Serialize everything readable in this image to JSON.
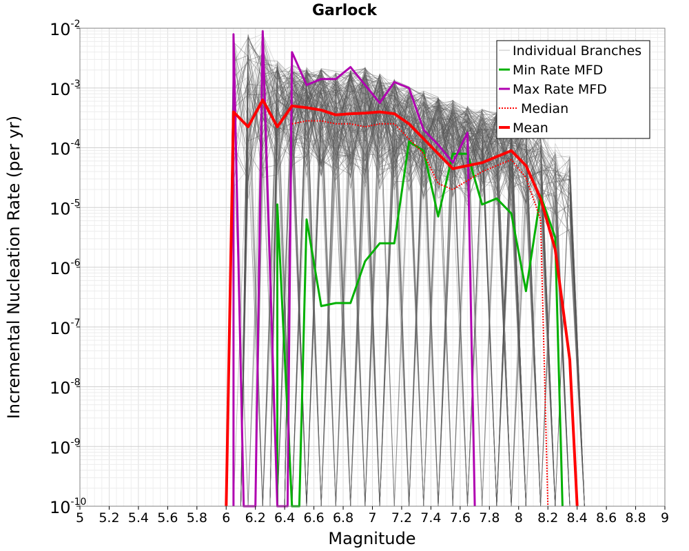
{
  "chart_data": {
    "type": "line",
    "title": "Garlock",
    "xlabel": "Magnitude",
    "ylabel": "Incremental Nucleation Rate (per yr)",
    "xlim": [
      5,
      9
    ],
    "ylim_log10": [
      -10,
      -2
    ],
    "y_scale": "log",
    "grid": true,
    "legend_position": "top-right",
    "x_ticks": [
      "5",
      "5.2",
      "5.4",
      "5.6",
      "5.8",
      "6",
      "6.2",
      "6.4",
      "6.6",
      "6.8",
      "7",
      "7.2",
      "7.4",
      "7.6",
      "7.8",
      "8",
      "8.2",
      "8.4",
      "8.6",
      "8.8",
      "9"
    ],
    "y_ticks": [
      {
        "base": "10",
        "exp": "-10"
      },
      {
        "base": "10",
        "exp": "-9"
      },
      {
        "base": "10",
        "exp": "-8"
      },
      {
        "base": "10",
        "exp": "-7"
      },
      {
        "base": "10",
        "exp": "-6"
      },
      {
        "base": "10",
        "exp": "-5"
      },
      {
        "base": "10",
        "exp": "-4"
      },
      {
        "base": "10",
        "exp": "-3"
      },
      {
        "base": "10",
        "exp": "-2"
      }
    ],
    "branch_envelope": {
      "x": [
        6.05,
        6.15,
        6.25,
        6.35,
        6.45,
        6.55,
        6.65,
        6.75,
        6.85,
        6.95,
        7.05,
        7.15,
        7.25,
        7.35,
        7.45,
        7.55,
        7.65,
        7.75,
        7.85,
        7.95,
        8.05,
        8.15,
        8.25,
        8.35,
        8.4
      ],
      "upper_log10": [
        -2.1,
        -2.1,
        -2.05,
        -2.55,
        -2.6,
        -2.65,
        -2.65,
        -2.7,
        -2.7,
        -2.65,
        -2.75,
        -2.85,
        -2.95,
        -3.05,
        -3.15,
        -3.2,
        -3.3,
        -3.35,
        -3.4,
        -3.45,
        -3.55,
        -3.7,
        -3.9,
        -4.1,
        -4.2
      ],
      "lower_log10": [
        -5.0,
        -5.0,
        -4.8,
        -4.6,
        -4.5,
        -4.6,
        -4.7,
        -4.8,
        -4.8,
        -4.8,
        -4.8,
        -4.8,
        -4.8,
        -4.9,
        -4.9,
        -4.9,
        -5.0,
        -5.0,
        -5.0,
        -5.1,
        -5.2,
        -5.4,
        -5.6,
        -5.8,
        -6.0
      ]
    },
    "series": [
      {
        "name": "Individual Branches",
        "color": "#c0c0c0",
        "style": "thin",
        "x": [],
        "log10_y": []
      },
      {
        "name": "Min Rate MFD",
        "color": "#00b000",
        "style": "solid",
        "x": [
          6.35,
          6.35,
          6.45,
          6.45,
          6.5,
          6.55,
          6.65,
          6.75,
          6.85,
          6.95,
          7.05,
          7.15,
          7.25,
          7.35,
          7.45,
          7.55,
          7.65,
          7.75,
          7.85,
          7.95,
          8.05,
          8.15,
          8.25,
          8.3,
          8.3
        ],
        "log10_y": [
          -10,
          -4.95,
          -10,
          -10,
          -10,
          -5.2,
          -6.65,
          -6.6,
          -6.6,
          -5.9,
          -5.6,
          -5.6,
          -3.9,
          -4.05,
          -5.15,
          -4.1,
          -4.1,
          -4.95,
          -4.85,
          -5.1,
          -6.4,
          -4.8,
          -5.5,
          -10,
          -10
        ]
      },
      {
        "name": "Max Rate MFD",
        "color": "#b000b0",
        "style": "solid",
        "x": [
          6.05,
          6.05,
          6.12,
          6.2,
          6.25,
          6.25,
          6.35,
          6.42,
          6.45,
          6.55,
          6.65,
          6.75,
          6.85,
          6.95,
          7.05,
          7.15,
          7.25,
          7.35,
          7.45,
          7.55,
          7.65,
          7.7
        ],
        "log10_y": [
          -10,
          -2.1,
          -10,
          -10,
          -2.05,
          -2.05,
          -10,
          -10,
          -2.4,
          -2.95,
          -2.85,
          -2.85,
          -2.65,
          -2.95,
          -3.25,
          -2.9,
          -3.0,
          -3.7,
          -3.95,
          -4.25,
          -3.75,
          -10
        ]
      },
      {
        "name": "Median",
        "color": "#ff0000",
        "style": "dotted",
        "x": [
          6.45,
          6.55,
          6.65,
          6.75,
          6.85,
          6.95,
          7.05,
          7.15,
          7.25,
          7.35,
          7.45,
          7.55,
          7.65,
          7.75,
          7.85,
          7.95,
          8.05,
          8.15,
          8.2
        ],
        "log10_y": [
          -3.6,
          -3.55,
          -3.55,
          -3.6,
          -3.6,
          -3.65,
          -3.6,
          -3.6,
          -3.85,
          -4.1,
          -4.6,
          -4.7,
          -4.55,
          -4.4,
          -4.3,
          -4.2,
          -4.5,
          -5.2,
          -10
        ]
      },
      {
        "name": "Mean",
        "color": "#ff0000",
        "style": "thick",
        "x": [
          6.0,
          6.05,
          6.15,
          6.25,
          6.35,
          6.45,
          6.55,
          6.65,
          6.75,
          6.85,
          6.95,
          7.05,
          7.15,
          7.25,
          7.35,
          7.45,
          7.55,
          7.65,
          7.75,
          7.85,
          7.95,
          8.05,
          8.15,
          8.25,
          8.35,
          8.4
        ],
        "log10_y": [
          -10,
          -3.4,
          -3.65,
          -3.2,
          -3.65,
          -3.3,
          -3.33,
          -3.37,
          -3.45,
          -3.43,
          -3.42,
          -3.4,
          -3.43,
          -3.6,
          -3.85,
          -4.1,
          -4.35,
          -4.3,
          -4.25,
          -4.15,
          -4.05,
          -4.3,
          -4.85,
          -5.7,
          -7.55,
          -10
        ]
      }
    ]
  }
}
